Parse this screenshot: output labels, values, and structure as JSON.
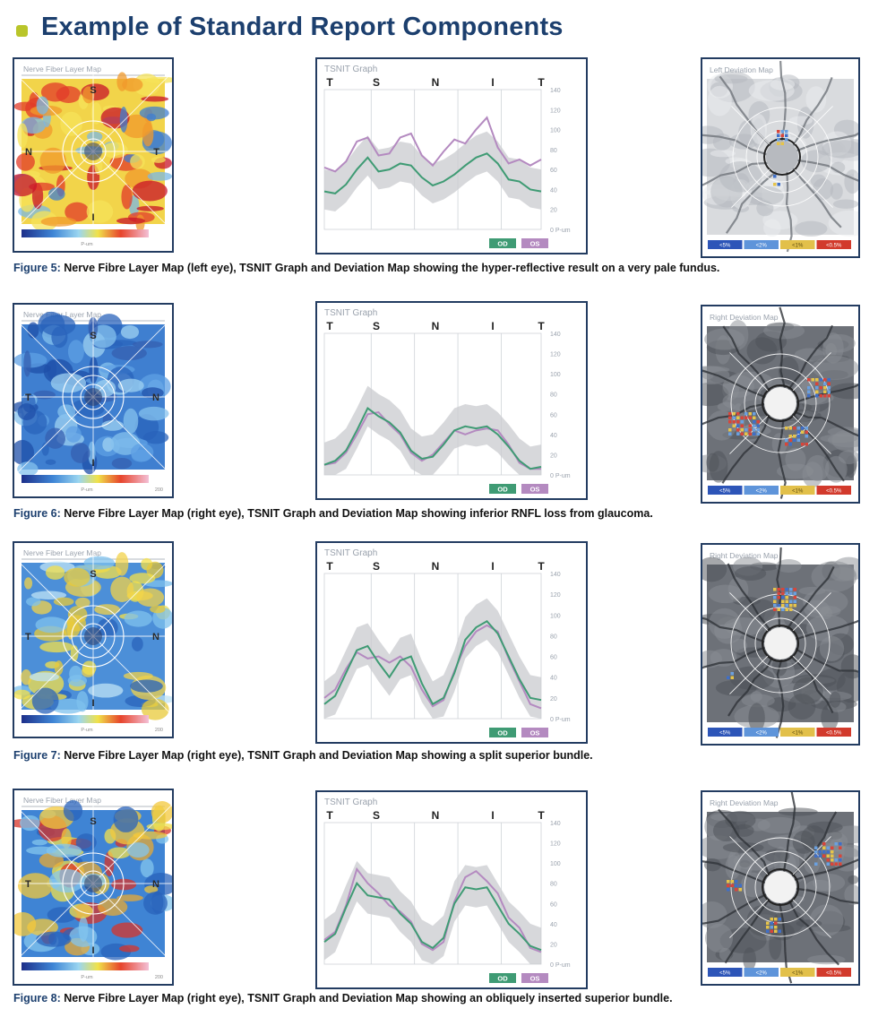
{
  "page": {
    "title": "Example of Standard Report Components"
  },
  "figures": [
    {
      "nfl_map": {
        "title": "Nerve Fiber Layer Map",
        "letters": [
          "S",
          "N",
          "T",
          "I"
        ],
        "scheme": "warm",
        "scale_label": "P-um",
        "scale_end": ""
      },
      "tsnit": {
        "title": "TSNIT Graph",
        "letters": [
          "T",
          "S",
          "N",
          "I",
          "T"
        ],
        "yticks": [
          "140",
          "120",
          "100",
          "80",
          "60",
          "40",
          "20",
          "0  P-um"
        ],
        "legend": [
          "OD",
          "OS"
        ]
      },
      "deviation": {
        "title": "Left Deviation Map",
        "legend": [
          "<5%",
          "<2%",
          "<1%",
          "<0.5%"
        ]
      },
      "caption_num": "Figure 5:",
      "caption_text": " Nerve Fibre Layer Map (left eye), TSNIT Graph and Deviation Map showing the hyper-reflective result on a very pale fundus."
    },
    {
      "nfl_map": {
        "title": "Nerve Fiber Layer Map",
        "letters": [
          "S",
          "T",
          "N",
          "I"
        ],
        "scheme": "blue",
        "scale_label": "P-um",
        "scale_end": "200"
      },
      "tsnit": {
        "title": "TSNIT Graph",
        "letters": [
          "T",
          "S",
          "N",
          "I",
          "T"
        ],
        "yticks": [
          "140",
          "120",
          "100",
          "80",
          "60",
          "40",
          "20",
          "0  P-um"
        ],
        "legend": [
          "OD",
          "OS"
        ]
      },
      "deviation": {
        "title": "Right Deviation Map",
        "legend": [
          "<5%",
          "<2%",
          "<1%",
          "<0.5%"
        ]
      },
      "caption_num": "Figure 6:",
      "caption_text": " Nerve Fibre Layer Map (right eye), TSNIT Graph and Deviation Map showing inferior RNFL loss from glaucoma."
    },
    {
      "nfl_map": {
        "title": "Nerve Fiber Layer Map",
        "letters": [
          "S",
          "T",
          "N",
          "I"
        ],
        "scheme": "mixed",
        "scale_label": "P-um",
        "scale_end": "200"
      },
      "tsnit": {
        "title": "TSNIT Graph",
        "letters": [
          "T",
          "S",
          "N",
          "I",
          "T"
        ],
        "yticks": [
          "140",
          "120",
          "100",
          "80",
          "60",
          "40",
          "20",
          "0  P-um"
        ],
        "legend": [
          "OD",
          "OS"
        ]
      },
      "deviation": {
        "title": "Right Deviation Map",
        "legend": [
          "<5%",
          "<2%",
          "<1%",
          "<0.5%"
        ]
      },
      "caption_num": "Figure 7:",
      "caption_text": " Nerve Fibre Layer Map (right eye), TSNIT Graph and Deviation Map showing a split superior bundle."
    },
    {
      "nfl_map": {
        "title": "Nerve Fiber Layer Map",
        "letters": [
          "S",
          "T",
          "N",
          "I"
        ],
        "scheme": "mixed2",
        "scale_label": "P-um",
        "scale_end": "200"
      },
      "tsnit": {
        "title": "TSNIT Graph",
        "letters": [
          "T",
          "S",
          "N",
          "I",
          "T"
        ],
        "yticks": [
          "140",
          "120",
          "100",
          "80",
          "60",
          "40",
          "20",
          "0  P-um"
        ],
        "legend": [
          "OD",
          "OS"
        ]
      },
      "deviation": {
        "title": "Right Deviation Map",
        "legend": [
          "<5%",
          "<2%",
          "<1%",
          "<0.5%"
        ]
      },
      "caption_num": "Figure 8:",
      "caption_text": " Nerve Fibre Layer Map (right eye), TSNIT Graph and Deviation Map showing an obliquely inserted superior bundle."
    }
  ],
  "chart_data": [
    {
      "type": "line",
      "title": "TSNIT Graph",
      "xlabel": "",
      "ylabel": "P-um",
      "ylim": [
        0,
        140
      ],
      "x": [
        0,
        1,
        2,
        3,
        4,
        5,
        6,
        7,
        8,
        9,
        10,
        11,
        12,
        13,
        14,
        15,
        16,
        17,
        18,
        19,
        20
      ],
      "series": [
        {
          "name": "OD",
          "values": [
            38,
            36,
            45,
            60,
            72,
            58,
            60,
            66,
            64,
            52,
            44,
            48,
            55,
            64,
            72,
            76,
            66,
            50,
            48,
            40,
            38
          ]
        },
        {
          "name": "OS",
          "values": [
            62,
            58,
            68,
            88,
            92,
            74,
            76,
            92,
            96,
            74,
            64,
            78,
            90,
            86,
            100,
            112,
            82,
            66,
            70,
            64,
            70
          ]
        }
      ]
    },
    {
      "type": "line",
      "title": "TSNIT Graph",
      "xlabel": "",
      "ylabel": "P-um",
      "ylim": [
        0,
        140
      ],
      "x": [
        0,
        1,
        2,
        3,
        4,
        5,
        6,
        7,
        8,
        9,
        10,
        11,
        12,
        13,
        14,
        15,
        16,
        17,
        18,
        19,
        20
      ],
      "series": [
        {
          "name": "OD",
          "values": [
            10,
            14,
            24,
            44,
            66,
            58,
            52,
            42,
            24,
            16,
            18,
            30,
            44,
            48,
            46,
            48,
            40,
            28,
            14,
            6,
            8
          ]
        },
        {
          "name": "OS",
          "values": [
            10,
            12,
            22,
            40,
            60,
            62,
            50,
            40,
            22,
            14,
            20,
            32,
            44,
            40,
            44,
            46,
            44,
            30,
            12,
            6,
            6
          ]
        }
      ]
    },
    {
      "type": "line",
      "title": "TSNIT Graph",
      "xlabel": "",
      "ylabel": "P-um",
      "ylim": [
        0,
        140
      ],
      "x": [
        0,
        1,
        2,
        3,
        4,
        5,
        6,
        7,
        8,
        9,
        10,
        11,
        12,
        13,
        14,
        15,
        16,
        17,
        18,
        19,
        20
      ],
      "series": [
        {
          "name": "OD",
          "values": [
            14,
            22,
            44,
            66,
            70,
            54,
            40,
            56,
            60,
            34,
            14,
            20,
            44,
            76,
            88,
            94,
            82,
            60,
            38,
            20,
            18
          ]
        },
        {
          "name": "OS",
          "values": [
            20,
            28,
            48,
            64,
            58,
            60,
            54,
            60,
            50,
            28,
            12,
            18,
            46,
            70,
            84,
            90,
            84,
            58,
            36,
            14,
            10
          ]
        }
      ]
    },
    {
      "type": "line",
      "title": "TSNIT Graph",
      "xlabel": "",
      "ylabel": "P-um",
      "ylim": [
        0,
        140
      ],
      "x": [
        0,
        1,
        2,
        3,
        4,
        5,
        6,
        7,
        8,
        9,
        10,
        11,
        12,
        13,
        14,
        15,
        16,
        17,
        18,
        19,
        20
      ],
      "series": [
        {
          "name": "OD",
          "values": [
            22,
            30,
            56,
            80,
            68,
            66,
            64,
            50,
            40,
            22,
            16,
            26,
            60,
            76,
            74,
            76,
            58,
            40,
            30,
            18,
            14
          ]
        },
        {
          "name": "OS",
          "values": [
            24,
            32,
            58,
            94,
            80,
            70,
            58,
            52,
            42,
            20,
            14,
            22,
            62,
            86,
            92,
            82,
            70,
            46,
            36,
            16,
            12
          ]
        }
      ]
    }
  ]
}
